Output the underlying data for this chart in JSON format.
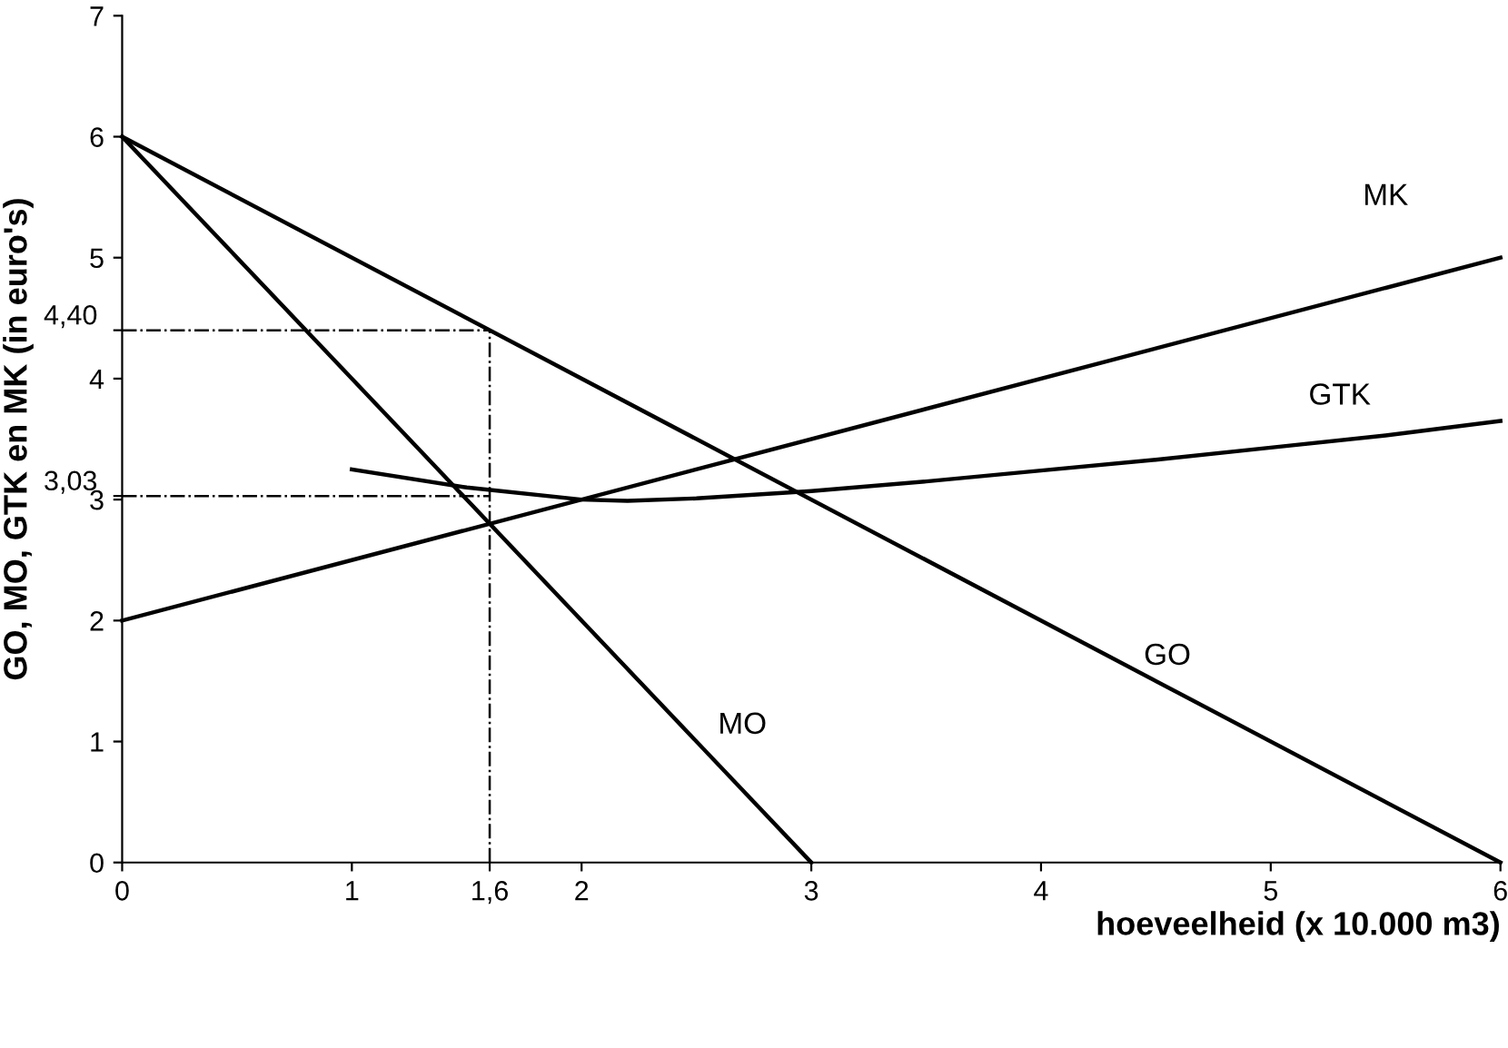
{
  "chart_data": {
    "type": "line",
    "xlabel": "hoeveelheid (x 10.000 m3)",
    "ylabel": "GO, MO, GTK en MK (in euro's)",
    "xlim": [
      0,
      6
    ],
    "ylim": [
      0,
      7
    ],
    "xticks": [
      0,
      1,
      {
        "value": 1.6,
        "label": "1,6"
      },
      2,
      3,
      4,
      5,
      6
    ],
    "yticks": [
      0,
      1,
      2,
      {
        "value": 3.03,
        "label": "3,03"
      },
      3,
      4,
      {
        "value": 4.4,
        "label": "4,40"
      },
      5,
      6,
      7
    ],
    "grid": false,
    "legend": false,
    "marker": "none",
    "series": [
      {
        "name": "MK",
        "color": "#000000",
        "x": [
          0,
          6
        ],
        "values": [
          2,
          5
        ]
      },
      {
        "name": "GTK",
        "color": "#000000",
        "x": [
          1,
          1.5,
          2,
          2.2,
          2.5,
          3,
          3.5,
          4,
          4.5,
          5,
          5.5,
          6
        ],
        "values": [
          3.25,
          3.1,
          3.0,
          2.99,
          3.01,
          3.07,
          3.15,
          3.24,
          3.33,
          3.43,
          3.53,
          3.65
        ]
      },
      {
        "name": "GO",
        "color": "#000000",
        "x": [
          0,
          6
        ],
        "values": [
          6,
          0
        ]
      },
      {
        "name": "MO",
        "color": "#000000",
        "x": [
          0,
          3
        ],
        "values": [
          6,
          0
        ]
      },
      {
        "color": "#000000",
        "line_style": "dashed",
        "x": [
          0,
          1.6
        ],
        "values": [
          4.4,
          4.4
        ]
      },
      {
        "color": "#000000",
        "line_style": "dashed",
        "x": [
          1.6,
          1.6
        ],
        "values": [
          0,
          4.4
        ]
      },
      {
        "color": "#000000",
        "line_style": "dashed",
        "x": [
          0,
          1.6
        ],
        "values": [
          3.03,
          3.03
        ]
      }
    ]
  }
}
